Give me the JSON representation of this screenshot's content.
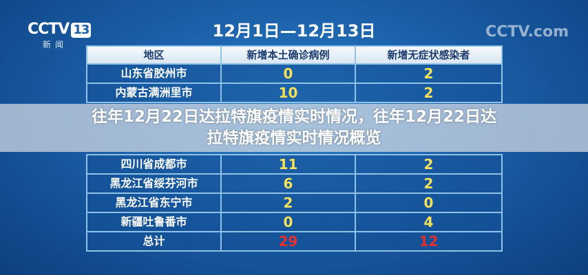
{
  "logo": {
    "text": "CCTV",
    "channel": "13",
    "sub": "新闻"
  },
  "watermark": "CCTV.com",
  "date_range": "12月1日—12月13日",
  "table": {
    "headers": [
      "地区",
      "新增本土确诊病例",
      "新增无症状感染者"
    ],
    "rows": [
      [
        "山东省胶州市",
        "0",
        "2"
      ],
      [
        "内蒙古满洲里市",
        "10",
        "2"
      ],
      [
        "四川省成都市",
        "11",
        "2"
      ],
      [
        "黑龙江省绥芬河市",
        "6",
        "2"
      ],
      [
        "黑龙江省东宁市",
        "2",
        "0"
      ],
      [
        "新疆吐鲁番市",
        "0",
        "4"
      ]
    ],
    "total": [
      "总计",
      "29",
      "12"
    ]
  },
  "overlay_title": {
    "line1": "往年12月22日达拉特旗疫情实时情况，往年12月22日达",
    "line2": "拉特旗疫情实时情况概览"
  }
}
